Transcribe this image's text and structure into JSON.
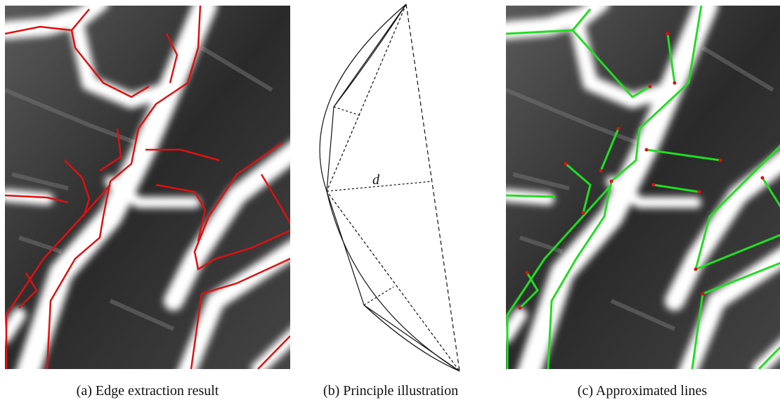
{
  "figure": {
    "panels": [
      {
        "caption": "(a) Edge extraction result"
      },
      {
        "caption": "(b) Principle illustration",
        "label": "d"
      },
      {
        "caption": "(c) Approximated lines"
      }
    ]
  }
}
